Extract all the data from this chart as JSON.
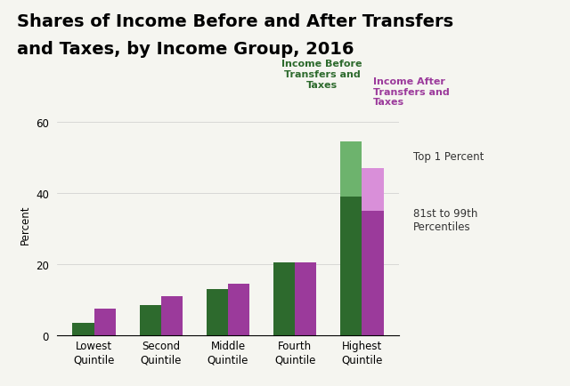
{
  "title_line1": "Shares of Income Before and After Transfers",
  "title_line2": "and Taxes, by Income Group, 2016",
  "ylabel": "Percent",
  "categories": [
    "Lowest\nQuintile",
    "Second\nQuintile",
    "Middle\nQuintile",
    "Fourth\nQuintile",
    "Highest\nQuintile"
  ],
  "before_base": [
    3.5,
    8.5,
    13.0,
    20.5,
    39.0
  ],
  "before_top1": [
    0.0,
    0.0,
    0.0,
    0.0,
    15.5
  ],
  "after_base": [
    7.5,
    11.0,
    14.5,
    20.5,
    35.0
  ],
  "after_top1": [
    0.0,
    0.0,
    0.0,
    0.0,
    12.0
  ],
  "color_before_base": "#2d6a2d",
  "color_before_top": "#6db36d",
  "color_after_base": "#9b3a9b",
  "color_after_top": "#d98fd9",
  "ylim": [
    0,
    63
  ],
  "yticks": [
    0,
    20,
    40,
    60
  ],
  "bar_width": 0.32,
  "legend_before_label": "Income Before\nTransfers and\nTaxes",
  "legend_after_label": "Income After\nTransfers and\nTaxes",
  "annotation_top1": "Top 1 Percent",
  "annotation_81to99": "81st to 99th\nPercentiles",
  "title_fontsize": 14,
  "label_fontsize": 8.5,
  "tick_fontsize": 8.5,
  "legend_fontsize": 8,
  "annotation_fontsize": 8.5,
  "bg_color": "#f5f5f0"
}
